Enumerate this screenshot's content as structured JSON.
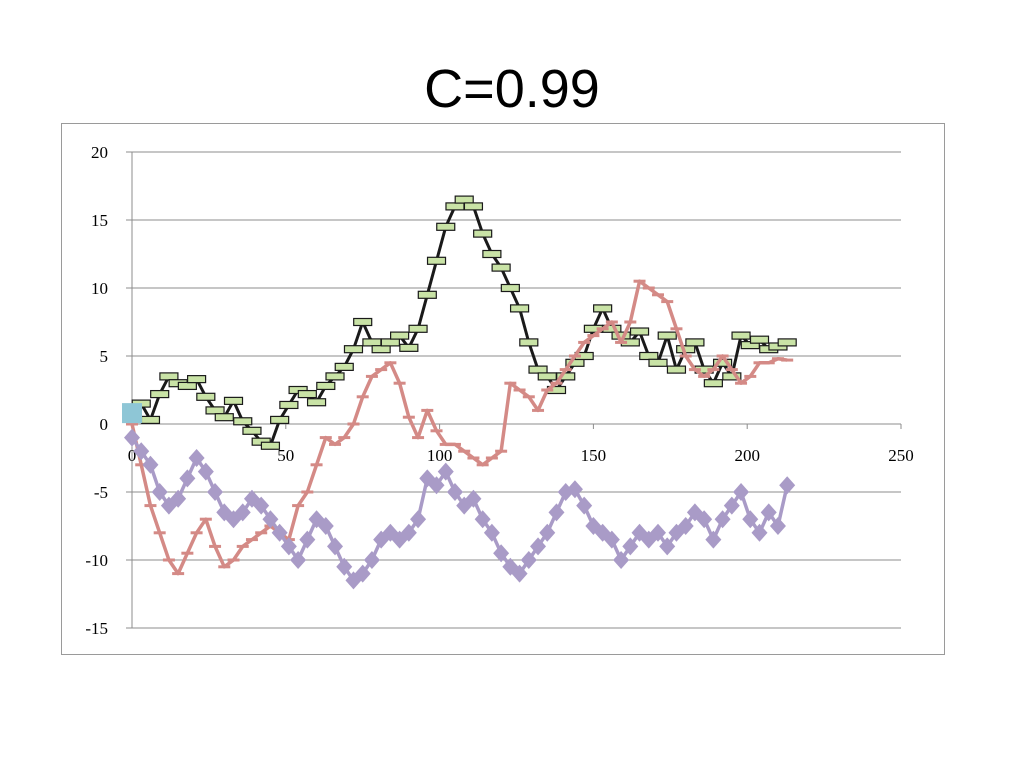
{
  "title": "C=0.99",
  "chart_data": {
    "type": "line",
    "title": "C=0.99",
    "xlabel": "",
    "ylabel": "",
    "xlim": [
      0,
      250
    ],
    "ylim": [
      -15,
      20
    ],
    "xticks": [
      0,
      50,
      100,
      150,
      200,
      250
    ],
    "yticks": [
      20,
      15,
      10,
      5,
      0,
      -5,
      -10,
      -15
    ],
    "grid": "horizontal",
    "legend": "none",
    "series": [
      {
        "color": "#1a1a1a",
        "marker": "bar-green",
        "x": [
          0,
          3,
          6,
          9,
          12,
          15,
          18,
          21,
          24,
          27,
          30,
          33,
          36,
          39,
          42,
          45,
          48,
          51,
          54,
          57,
          60,
          63,
          66,
          69,
          72,
          75,
          78,
          81,
          84,
          87,
          90,
          93,
          96,
          99,
          102,
          105,
          108,
          111,
          114,
          117,
          120,
          123,
          126,
          129,
          132,
          135,
          138,
          141,
          144,
          147,
          150,
          153,
          156,
          159,
          162,
          165,
          168,
          171,
          174,
          177,
          180,
          183,
          186,
          189,
          192,
          195,
          198,
          201,
          204,
          207,
          210,
          213
        ],
        "y": [
          0.5,
          1.5,
          0.3,
          2.2,
          3.5,
          3.0,
          2.8,
          3.3,
          2.0,
          1.0,
          0.5,
          1.7,
          0.2,
          -0.5,
          -1.3,
          -1.6,
          0.3,
          1.4,
          2.5,
          2.2,
          1.6,
          2.8,
          3.5,
          4.2,
          5.5,
          7.5,
          6.0,
          5.5,
          6.0,
          6.5,
          5.6,
          7.0,
          9.5,
          12.0,
          14.5,
          16.0,
          16.5,
          16.0,
          14.0,
          12.5,
          11.5,
          10.0,
          8.5,
          6.0,
          4.0,
          3.5,
          2.5,
          3.5,
          4.5,
          5.0,
          7.0,
          8.5,
          7.0,
          6.5,
          6.0,
          6.8,
          5.0,
          4.5,
          6.5,
          4.0,
          5.5,
          6.0,
          4.0,
          3.0,
          4.5,
          3.5,
          6.5,
          5.8,
          6.2,
          5.5,
          5.7,
          6.0
        ]
      },
      {
        "color": "#d48a86",
        "marker": "dash",
        "x": [
          0,
          3,
          6,
          9,
          12,
          15,
          18,
          21,
          24,
          27,
          30,
          33,
          36,
          39,
          42,
          45,
          48,
          51,
          54,
          57,
          60,
          63,
          66,
          69,
          72,
          75,
          78,
          81,
          84,
          87,
          90,
          93,
          96,
          99,
          102,
          105,
          108,
          111,
          114,
          117,
          120,
          123,
          126,
          129,
          132,
          135,
          138,
          141,
          144,
          147,
          150,
          153,
          156,
          159,
          162,
          165,
          168,
          171,
          174,
          177,
          180,
          183,
          186,
          189,
          192,
          195,
          198,
          201,
          204,
          207,
          210,
          213
        ],
        "y": [
          0,
          -3,
          -6,
          -8,
          -10,
          -11,
          -9.5,
          -8,
          -7,
          -9,
          -10.5,
          -10,
          -9,
          -8.5,
          -8,
          -7.5,
          -8,
          -8.5,
          -6,
          -5,
          -3,
          -1,
          -1.5,
          -1,
          0,
          2,
          3.5,
          4,
          4.5,
          3,
          0.5,
          -1,
          1,
          -0.5,
          -1.5,
          -1.5,
          -2,
          -2.5,
          -3,
          -2.5,
          -2,
          3,
          2.5,
          2,
          1,
          2.5,
          3,
          4,
          5,
          6,
          6.5,
          7,
          7.5,
          6,
          7.5,
          10.5,
          10,
          9.5,
          9,
          7,
          5,
          4,
          3.5,
          4,
          5,
          4,
          3,
          3.5,
          4.5,
          4.5,
          4.8,
          4.7
        ]
      },
      {
        "color": "#a99bc7",
        "marker": "diamond",
        "x": [
          0,
          3,
          6,
          9,
          12,
          15,
          18,
          21,
          24,
          27,
          30,
          33,
          36,
          39,
          42,
          45,
          48,
          51,
          54,
          57,
          60,
          63,
          66,
          69,
          72,
          75,
          78,
          81,
          84,
          87,
          90,
          93,
          96,
          99,
          102,
          105,
          108,
          111,
          114,
          117,
          120,
          123,
          126,
          129,
          132,
          135,
          138,
          141,
          144,
          147,
          150,
          153,
          156,
          159,
          162,
          165,
          168,
          171,
          174,
          177,
          180,
          183,
          186,
          189,
          192,
          195,
          198,
          201,
          204,
          207,
          210,
          213
        ],
        "y": [
          -1,
          -2,
          -3,
          -5,
          -6,
          -5.5,
          -4,
          -2.5,
          -3.5,
          -5,
          -6.5,
          -7,
          -6.5,
          -5.5,
          -6,
          -7,
          -8,
          -9,
          -10,
          -8.5,
          -7,
          -7.5,
          -9,
          -10.5,
          -11.5,
          -11,
          -10,
          -8.5,
          -8,
          -8.5,
          -8,
          -7,
          -4,
          -4.5,
          -3.5,
          -5,
          -6,
          -5.5,
          -7,
          -8,
          -9.5,
          -10.5,
          -11,
          -10,
          -9,
          -8,
          -6.5,
          -5,
          -4.8,
          -6,
          -7.5,
          -8,
          -8.5,
          -10,
          -9,
          -8,
          -8.5,
          -8,
          -9,
          -8,
          -7.5,
          -6.5,
          -7,
          -8.5,
          -7,
          -6,
          -5,
          -7,
          -8,
          -6.5,
          -7.5,
          -4.5
        ]
      },
      {
        "color": "#8ec6d6",
        "marker": "square",
        "x": [
          0
        ],
        "y": [
          0.8
        ]
      }
    ]
  }
}
